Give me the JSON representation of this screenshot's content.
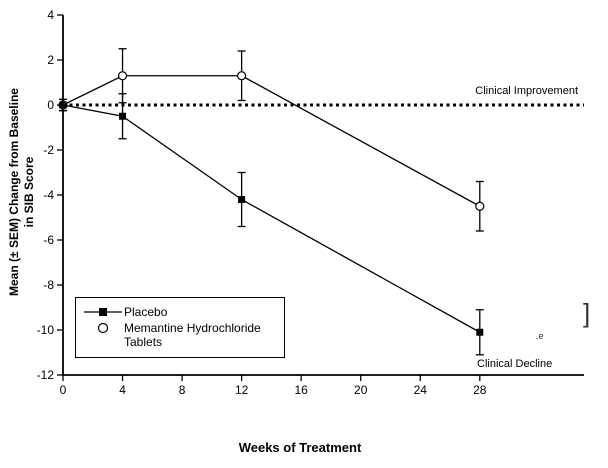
{
  "chart_data": {
    "type": "line",
    "title": "",
    "xlabel": "Weeks of Treatment",
    "ylabel": "Mean (± SEM) Change from Baseline in SIB Score",
    "ylabel_line1": "Mean (± SEM) Change from Baseline",
    "ylabel_line2": "in SIB Score",
    "xlim": [
      0,
      35
    ],
    "ylim": [
      -12,
      4
    ],
    "x_ticks": [
      0,
      4,
      8,
      12,
      16,
      20,
      24,
      28
    ],
    "y_ticks": [
      4,
      2,
      0,
      -2,
      -4,
      -6,
      -8,
      -10,
      -12
    ],
    "grid": false,
    "legend_position": "bottom-left",
    "series": [
      {
        "name": "Placebo",
        "marker": "filled-square",
        "x": [
          0,
          4,
          12,
          28
        ],
        "y": [
          0,
          -0.5,
          -4.2,
          -10.1
        ],
        "sem": [
          0.25,
          1.0,
          1.2,
          1.0
        ]
      },
      {
        "name": "Memantine Hydrochloride Tablets",
        "marker": "open-circle",
        "x": [
          0,
          4,
          12,
          28
        ],
        "y": [
          0,
          1.3,
          1.3,
          -4.5
        ],
        "sem": [
          0.25,
          1.2,
          1.1,
          1.1
        ]
      }
    ],
    "reference_line": {
      "y": 0,
      "style": "dotted",
      "label_above": "Clinical Improvement",
      "label_below": "Clinical Decline"
    }
  },
  "annotations": {
    "bracket": "]",
    "stray": ".e"
  },
  "colors": {
    "line": "#000000",
    "background": "#ffffff"
  }
}
